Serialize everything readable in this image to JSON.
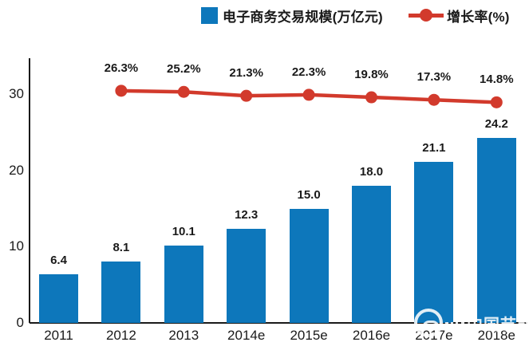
{
  "legend": {
    "bar_label": "电子商务交易规模(万亿元)",
    "line_label": "增长率(%)"
  },
  "colors": {
    "bar": "#0d77bb",
    "line": "#d23a2c",
    "axis": "#1a1a1a",
    "text": "#1a1a1a"
  },
  "watermark": {
    "text": "中国节能网"
  },
  "chart_data": {
    "type": "bar",
    "title": "",
    "categories": [
      "2011",
      "2012",
      "2013",
      "2014e",
      "2015e",
      "2016e",
      "2017e",
      "2018e"
    ],
    "series": [
      {
        "name": "电子商务交易规模(万亿元)",
        "type": "bar",
        "color": "#0d77bb",
        "values": [
          6.4,
          8.1,
          10.1,
          12.3,
          15.0,
          18.0,
          21.1,
          24.2
        ],
        "value_labels": [
          "6.4",
          "8.1",
          "10.1",
          "12.3",
          "15.0",
          "18.0",
          "21.1",
          "24.2"
        ]
      },
      {
        "name": "增长率(%)",
        "type": "line",
        "color": "#d23a2c",
        "values": [
          null,
          26.3,
          25.2,
          21.3,
          22.3,
          19.8,
          17.3,
          14.8
        ],
        "point_labels": [
          "",
          "26.3%",
          "25.2%",
          "21.3%",
          "22.3%",
          "19.8%",
          "17.3%",
          "14.8%"
        ]
      }
    ],
    "xlabel": "",
    "ylabel": "",
    "ylim": [
      0,
      30
    ],
    "yticks": [
      "0",
      "10",
      "20",
      "30"
    ],
    "grid": false,
    "legend_position": "top-center"
  }
}
